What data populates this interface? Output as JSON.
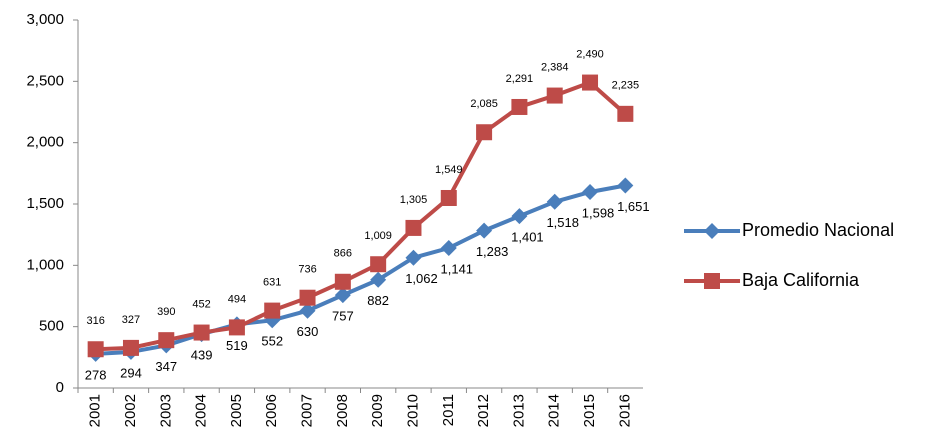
{
  "chart_data": {
    "type": "line",
    "categories": [
      "2001",
      "2002",
      "2003",
      "2004",
      "2005",
      "2006",
      "2007",
      "2008",
      "2009",
      "2010",
      "2011",
      "2012",
      "2013",
      "2014",
      "2015",
      "2016"
    ],
    "series": [
      {
        "name": "Promedio Nacional",
        "color": "#4a7ebb",
        "marker": "diamond",
        "values": [
          278,
          294,
          347,
          439,
          519,
          552,
          630,
          757,
          882,
          1062,
          1141,
          1283,
          1401,
          1518,
          1598,
          1651
        ],
        "value_labels": [
          "278",
          "294",
          "347",
          "439",
          "519",
          "552",
          "630",
          "757",
          "882",
          "1,062",
          "1,141",
          "1,283",
          "1,401",
          "1,518",
          "1,598",
          "1,651"
        ]
      },
      {
        "name": "Baja California",
        "color": "#be4b48",
        "marker": "square",
        "values": [
          316,
          327,
          390,
          452,
          494,
          631,
          736,
          866,
          1009,
          1305,
          1549,
          2085,
          2291,
          2384,
          2490,
          2235
        ],
        "value_labels": [
          "316",
          "327",
          "390",
          "452",
          "494",
          "631",
          "736",
          "866",
          "1,009",
          "1,305",
          "1,549",
          "2,085",
          "2,291",
          "2,384",
          "2,490",
          "2,235"
        ]
      }
    ],
    "ylim": [
      0,
      3000
    ],
    "yticks": [
      0,
      500,
      {
        "value": 1000,
        "label": "1,000"
      },
      {
        "value": 1500,
        "label": "1,500"
      },
      {
        "value": 2000,
        "label": "2,000"
      },
      {
        "value": 2500,
        "label": "2,500"
      },
      {
        "value": 3000,
        "label": "3,000"
      }
    ],
    "grid": false,
    "legend": "right"
  }
}
